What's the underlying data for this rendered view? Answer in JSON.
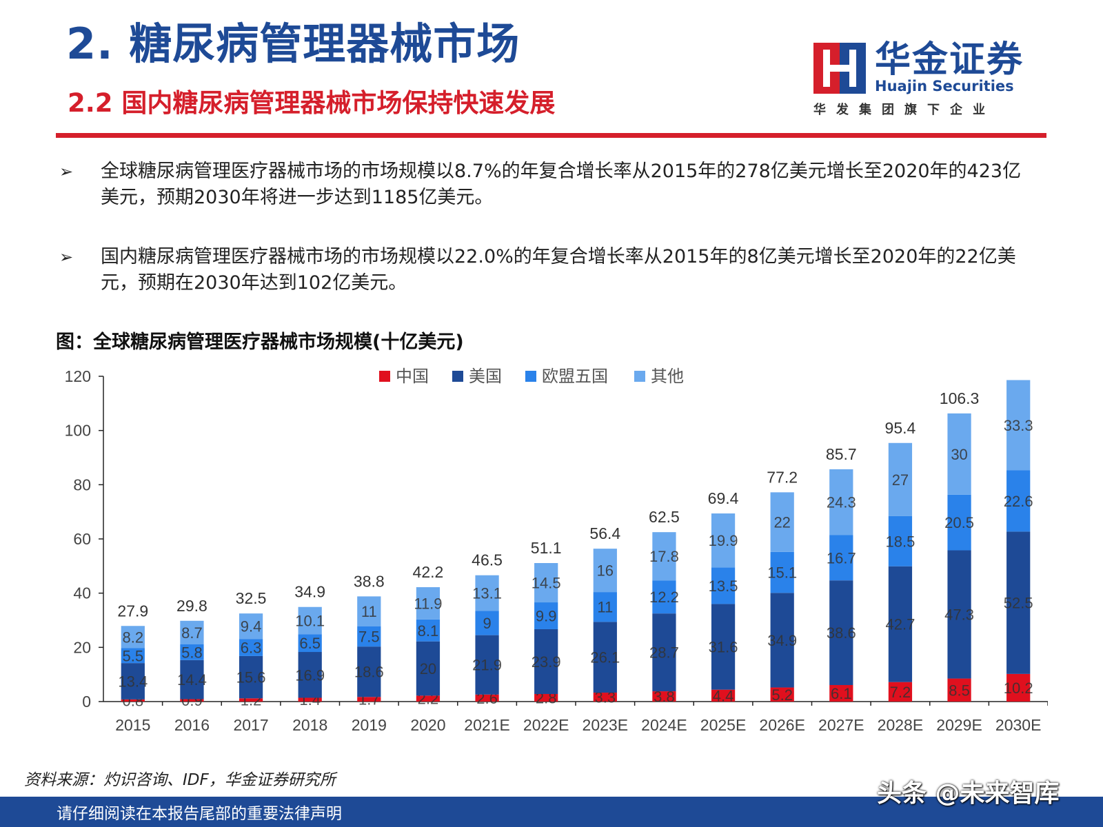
{
  "header": {
    "section_title": "2. 糖尿病管理器械市场",
    "subtitle": "2.2  国内糖尿病管理器械市场保持快速发展"
  },
  "logo": {
    "name_cn": "华金证券",
    "name_en": "Huajin Securities",
    "tagline": "华发集团旗下企业"
  },
  "bullets": [
    {
      "text": "全球糖尿病管理医疗器械市场的市场规模以8.7%的年复合增长率从2015年的278亿美元增长至2020年的423亿美元，预期2030年将进一步达到1185亿美元。"
    },
    {
      "text": "国内糖尿病管理医疗器械市场的市场规模以22.0%的年复合增长率从2015年的8亿美元增长至2020年的22亿美元，预期在2030年达到102亿美元。"
    }
  ],
  "bullet_symbol": "➢",
  "figure_title": "图：全球糖尿病管理医疗器械市场规模(十亿美元)",
  "chart_data": {
    "type": "bar",
    "stacked": true,
    "categories": [
      "2015",
      "2016",
      "2017",
      "2018",
      "2019",
      "2020",
      "2021E",
      "2022E",
      "2023E",
      "2024E",
      "2025E",
      "2026E",
      "2027E",
      "2028E",
      "2029E",
      "2030E"
    ],
    "series": [
      {
        "name": "中国",
        "color": "#e0101e",
        "values": [
          0.8,
          0.9,
          1.2,
          1.4,
          1.7,
          2.2,
          2.6,
          2.8,
          3.3,
          3.8,
          4.4,
          5.2,
          6.1,
          7.2,
          8.5,
          10.2
        ]
      },
      {
        "name": "美国",
        "color": "#1e4a96",
        "values": [
          13.4,
          14.4,
          15.6,
          16.9,
          18.6,
          20,
          21.9,
          23.9,
          26.1,
          28.7,
          31.6,
          34.9,
          38.6,
          42.7,
          47.3,
          52.5
        ]
      },
      {
        "name": "欧盟五国",
        "color": "#2a82ea",
        "values": [
          5.5,
          5.8,
          6.3,
          6.5,
          7.5,
          8.1,
          9,
          9.9,
          11,
          12.2,
          13.5,
          15.1,
          16.7,
          18.5,
          20.5,
          22.6
        ]
      },
      {
        "name": "其他",
        "color": "#6aa9ee",
        "values": [
          8.2,
          8.7,
          9.4,
          10.1,
          11,
          11.9,
          13.1,
          14.5,
          16,
          17.8,
          19.9,
          22,
          24.3,
          27,
          30,
          33.3
        ]
      }
    ],
    "totals": [
      "27.9",
      "29.8",
      "32.5",
      "34.9",
      "38.8",
      "42.2",
      "46.5",
      "51.1",
      "56.4",
      "62.5",
      "69.4",
      "77.2",
      "85.7",
      "95.4",
      "106.3",
      ""
    ],
    "ylim": [
      0,
      120
    ],
    "yticks": [
      0,
      20,
      40,
      60,
      80,
      100,
      120
    ],
    "legend_position": "top-center",
    "grid": false
  },
  "source": "资料来源：灼识咨询、IDF，华金证券研究所",
  "footer": "请仔细阅读在本报告尾部的重要法律声明",
  "watermark": "头条 @未来智库"
}
